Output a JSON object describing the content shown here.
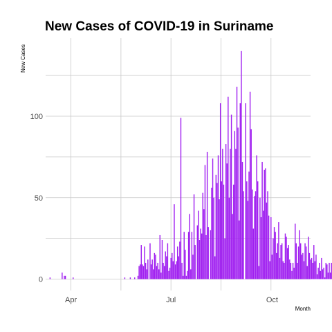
{
  "chart_data": {
    "type": "bar",
    "title": "New Cases of COVID-19 in Suriname",
    "xlabel": "Month",
    "ylabel": "New  Cases",
    "x_start": "2020-03-13",
    "x_ticks": [
      {
        "label": "Apr",
        "date": "2020-04-01"
      },
      {
        "label": "Jul",
        "date": "2020-07-01"
      },
      {
        "label": "Oct",
        "date": "2020-10-01"
      }
    ],
    "x_range": [
      "2020-03-09",
      "2020-11-05"
    ],
    "y_ticks": [
      0,
      50,
      100
    ],
    "ylim": [
      -7,
      148
    ],
    "grid": true,
    "bar_color": "#a020f0",
    "values": [
      1,
      0,
      0,
      0,
      0,
      0,
      0,
      0,
      0,
      0,
      0,
      4,
      0,
      2,
      2,
      0,
      0,
      0,
      0,
      0,
      0,
      1,
      0,
      0,
      0,
      0,
      0,
      0,
      0,
      0,
      0,
      0,
      0,
      0,
      0,
      0,
      0,
      0,
      0,
      0,
      0,
      0,
      0,
      0,
      0,
      0,
      0,
      0,
      0,
      0,
      0,
      0,
      0,
      0,
      0,
      0,
      0,
      0,
      0,
      0,
      0,
      0,
      0,
      0,
      0,
      0,
      0,
      0,
      1,
      0,
      0,
      0,
      0,
      1,
      0,
      0,
      0,
      1,
      0,
      0,
      2,
      8,
      9,
      21,
      9,
      8,
      20,
      10,
      6,
      12,
      0,
      22,
      9,
      12,
      6,
      16,
      15,
      8,
      10,
      6,
      27,
      4,
      24,
      10,
      8,
      17,
      14,
      22,
      5,
      7,
      13,
      16,
      11,
      46,
      9,
      11,
      20,
      14,
      23,
      99,
      10,
      2,
      29,
      18,
      2,
      5,
      29,
      40,
      6,
      29,
      15,
      52,
      21,
      0,
      33,
      42,
      24,
      31,
      28,
      53,
      43,
      70,
      27,
      78,
      32,
      0,
      30,
      56,
      74,
      50,
      14,
      64,
      59,
      76,
      49,
      108,
      60,
      80,
      58,
      25,
      83,
      71,
      112,
      50,
      80,
      101,
      40,
      58,
      91,
      80,
      118,
      93,
      36,
      108,
      140,
      72,
      54,
      0,
      108,
      60,
      48,
      66,
      115,
      92,
      55,
      31,
      51,
      54,
      76,
      60,
      8,
      50,
      38,
      72,
      42,
      67,
      68,
      47,
      54,
      39,
      11,
      38,
      15,
      25,
      32,
      29,
      16,
      22,
      35,
      13,
      21,
      22,
      11,
      10,
      28,
      26,
      19,
      21,
      12,
      10,
      5,
      10,
      7,
      34,
      22,
      10,
      20,
      30,
      22,
      15,
      16,
      11,
      22,
      20,
      8,
      26,
      16,
      12,
      13,
      10,
      21,
      11,
      15,
      3,
      7,
      10,
      5,
      13,
      6,
      7,
      1,
      10,
      9,
      4,
      10,
      4,
      10,
      5
    ]
  }
}
